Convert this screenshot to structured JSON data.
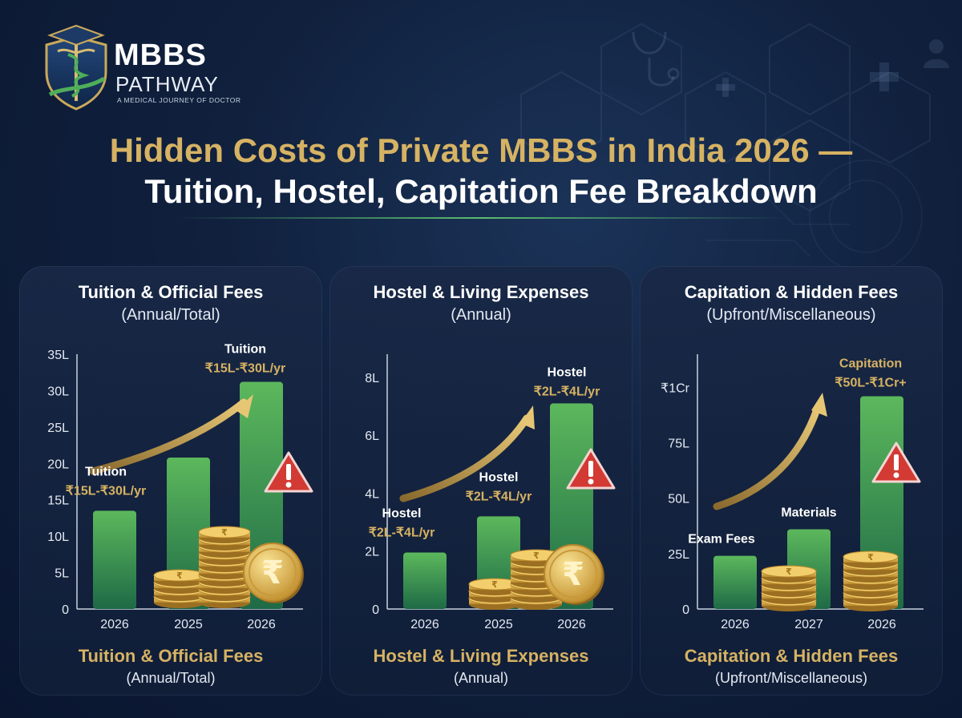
{
  "brand": {
    "name": "MBBS",
    "name_sub": "PATHWAY",
    "tagline": "A MEDICAL JOURNEY OF DOCTOR"
  },
  "title": {
    "line1": "Hidden Costs of Private MBBS in India 2026 —",
    "line2": "Tuition, Hostel, Capitation Fee Breakdown"
  },
  "colors": {
    "gold": "#d6b263",
    "bar_top": "#5cb85c",
    "bar_bottom": "#1e6a46",
    "warning": "#d23a33",
    "background": "#10203d"
  },
  "icons": [
    "caduceus-shield-logo",
    "warning-triangle-icon",
    "coin-stack-icon",
    "rupee-coin-icon",
    "stethoscope-icon",
    "medical-cross-icon",
    "doctor-icon"
  ],
  "chart_data": [
    {
      "type": "bar",
      "heading": "Tuition & Official Fees",
      "subheading": "(Annual/Total)",
      "footer": "Tuition & Official Fees",
      "footer_sub": "(Annual/Total)",
      "categories": [
        "2026",
        "2025",
        "2026"
      ],
      "values": [
        13.5,
        20.8,
        31.2
      ],
      "ylim": [
        0,
        35
      ],
      "ticks": [
        {
          "value": 0,
          "label": "0"
        },
        {
          "value": 5,
          "label": "5L"
        },
        {
          "value": 10,
          "label": "10L"
        },
        {
          "value": 15,
          "label": "15L"
        },
        {
          "value": 20,
          "label": "20L"
        },
        {
          "value": 25,
          "label": "25L"
        },
        {
          "value": 30,
          "label": "30L"
        },
        {
          "value": 35,
          "label": "35L"
        }
      ],
      "annotations": [
        {
          "bar": 0,
          "name": "Tuition",
          "range": "₹15L-₹30L/yr"
        },
        {
          "bar": 2,
          "name": "Tuition",
          "range": "₹15L-₹30L/yr"
        }
      ],
      "warning_bar": 2
    },
    {
      "type": "bar",
      "heading": "Hostel & Living Expenses",
      "subheading": "(Annual)",
      "footer": "Hostel & Living Expenses",
      "footer_sub": "(Annual)",
      "categories": [
        "2026",
        "2025",
        "2026"
      ],
      "values": [
        1.95,
        3.2,
        7.1
      ],
      "ylim": [
        0,
        8.8
      ],
      "ticks": [
        {
          "value": 0,
          "label": "0"
        },
        {
          "value": 2,
          "label": "2L"
        },
        {
          "value": 4,
          "label": "4L"
        },
        {
          "value": 6,
          "label": "6L"
        },
        {
          "value": 8,
          "label": "8L"
        }
      ],
      "annotations": [
        {
          "bar": 0,
          "name": "Hostel",
          "range": "₹2L-₹4L/yr"
        },
        {
          "bar": 1,
          "name": "Hostel",
          "range": "₹2L-₹4L/yr"
        },
        {
          "bar": 2,
          "name": "Hostel",
          "range": "₹2L-₹4L/yr"
        }
      ],
      "warning_bar": 2
    },
    {
      "type": "bar",
      "heading": "Capitation & Hidden Fees",
      "subheading": "(Upfront/Miscellaneous)",
      "footer": "Capitation & Hidden Fees",
      "footer_sub": "(Upfront/Miscellaneous)",
      "categories": [
        "2026",
        "2027",
        "2026"
      ],
      "values": [
        24,
        36,
        96
      ],
      "ylim": [
        0,
        115
      ],
      "ticks": [
        {
          "value": 0,
          "label": "0"
        },
        {
          "value": 25,
          "label": "25L"
        },
        {
          "value": 50,
          "label": "50L"
        },
        {
          "value": 75,
          "label": "75L"
        },
        {
          "value": 100,
          "label": "₹1Cr"
        }
      ],
      "annotations": [
        {
          "bar": 0,
          "name": "Exam Fees",
          "range": ""
        },
        {
          "bar": 1,
          "name": "Materials",
          "range": ""
        },
        {
          "bar": 2,
          "name": "Capitation",
          "range": "₹50L-₹1Cr+",
          "gold_name": true
        }
      ],
      "warning_bar": 2
    }
  ]
}
